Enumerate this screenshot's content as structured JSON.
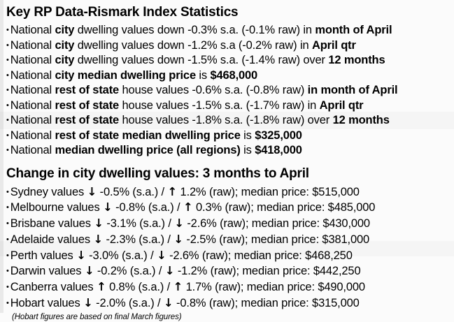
{
  "bullet": "•",
  "icons": {
    "up": "↑",
    "down": "↓"
  },
  "colors": {
    "text": "#000000",
    "background": "#fbfbfb",
    "left_edge": "#e9e9e9"
  },
  "key_stats": {
    "title": "Key RP Data-Rismark Index Statistics",
    "lines": [
      {
        "segments": [
          {
            "t": "National ",
            "b": false
          },
          {
            "t": "city",
            "b": true
          },
          {
            "t": " dwelling values down -0.3% s.a. (-0.1% raw) in ",
            "b": false
          },
          {
            "t": "month of April",
            "b": true
          }
        ]
      },
      {
        "segments": [
          {
            "t": "National ",
            "b": false
          },
          {
            "t": "city",
            "b": true
          },
          {
            "t": " dwelling values down -1.2% s.a (-0.2% raw) in ",
            "b": false
          },
          {
            "t": "April qtr",
            "b": true
          }
        ]
      },
      {
        "segments": [
          {
            "t": "National ",
            "b": false
          },
          {
            "t": "city",
            "b": true
          },
          {
            "t": " dwelling values down -1.5% s.a. (-1.4% raw) over ",
            "b": false
          },
          {
            "t": "12 months",
            "b": true
          }
        ]
      },
      {
        "segments": [
          {
            "t": "National ",
            "b": false
          },
          {
            "t": "city median dwelling price",
            "b": true
          },
          {
            "t": " is ",
            "b": false
          },
          {
            "t": "$468,000",
            "b": true
          }
        ]
      },
      {
        "segments": [
          {
            "t": "National ",
            "b": false
          },
          {
            "t": "rest of state",
            "b": true
          },
          {
            "t": " house values -0.6% s.a. (-0.8% raw) ",
            "b": false
          },
          {
            "t": "in month of April",
            "b": true
          }
        ]
      },
      {
        "segments": [
          {
            "t": "National ",
            "b": false
          },
          {
            "t": "rest of state",
            "b": true
          },
          {
            "t": " house values -1.5% s.a. (-1.7% raw) in ",
            "b": false
          },
          {
            "t": "April qtr",
            "b": true
          }
        ]
      },
      {
        "segments": [
          {
            "t": "National ",
            "b": false
          },
          {
            "t": "rest of state",
            "b": true
          },
          {
            "t": " house values -1.8% s.a. (-1.8% raw) over ",
            "b": false
          },
          {
            "t": "12 months",
            "b": true
          }
        ]
      },
      {
        "segments": [
          {
            "t": "National ",
            "b": false
          },
          {
            "t": "rest of state median dwelling price",
            "b": true
          },
          {
            "t": " is ",
            "b": false
          },
          {
            "t": "$325,000",
            "b": true
          }
        ]
      },
      {
        "segments": [
          {
            "t": "National ",
            "b": false
          },
          {
            "t": "median dwelling price (all regions)",
            "b": true
          },
          {
            "t": " is ",
            "b": false
          },
          {
            "t": "$418,000",
            "b": true
          }
        ]
      }
    ]
  },
  "city_changes": {
    "title": "Change in city dwelling values: 3 months to April",
    "lines": [
      {
        "segments": [
          {
            "t": "Sydney values ",
            "b": false
          },
          {
            "arrow": "down"
          },
          {
            "t": " -0.5% (s.a.) / ",
            "b": false
          },
          {
            "arrow": "up"
          },
          {
            "t": " 1.2% (raw); median price: $515,000",
            "b": false
          }
        ]
      },
      {
        "segments": [
          {
            "t": "Melbourne values ",
            "b": false
          },
          {
            "arrow": "down"
          },
          {
            "t": " -0.8% (s.a.) / ",
            "b": false
          },
          {
            "arrow": "up"
          },
          {
            "t": " 0.3% (raw); median price: $485,000",
            "b": false
          }
        ]
      },
      {
        "segments": [
          {
            "t": "Brisbane values ",
            "b": false
          },
          {
            "arrow": "down"
          },
          {
            "t": " -3.1% (s.a.) / ",
            "b": false
          },
          {
            "arrow": "down"
          },
          {
            "t": " -2.6% (raw); median price: $430,000",
            "b": false
          }
        ]
      },
      {
        "segments": [
          {
            "t": "Adelaide values ",
            "b": false
          },
          {
            "arrow": "down"
          },
          {
            "t": " -2.3% (s.a.) / ",
            "b": false
          },
          {
            "arrow": "down"
          },
          {
            "t": " -2.5% (raw); median price: $381,000",
            "b": false
          }
        ]
      },
      {
        "segments": [
          {
            "t": "Perth values ",
            "b": false
          },
          {
            "arrow": "down"
          },
          {
            "t": " -3.0% (s.a.) / ",
            "b": false
          },
          {
            "arrow": "down"
          },
          {
            "t": " -2.6% (raw); median price: $468,250",
            "b": false
          }
        ]
      },
      {
        "segments": [
          {
            "t": "Darwin values ",
            "b": false
          },
          {
            "arrow": "down"
          },
          {
            "t": " -0.2% (s.a.) / ",
            "b": false
          },
          {
            "arrow": "down"
          },
          {
            "t": " -1.2% (raw); median price: $442,250",
            "b": false
          }
        ]
      },
      {
        "segments": [
          {
            "t": "Canberra values ",
            "b": false
          },
          {
            "arrow": "up"
          },
          {
            "t": " 0.8% (s.a.) / ",
            "b": false
          },
          {
            "arrow": "up"
          },
          {
            "t": " 1.7% (raw); median price: $490,000",
            "b": false
          }
        ]
      },
      {
        "segments": [
          {
            "t": "Hobart values ",
            "b": false
          },
          {
            "arrow": "down"
          },
          {
            "t": " -2.0% (s.a.) / ",
            "b": false
          },
          {
            "arrow": "down"
          },
          {
            "t": " -0.8% (raw); median price: $315,000",
            "b": false
          }
        ]
      }
    ],
    "footnote": "(Hobart figures are based on final March figures)"
  }
}
